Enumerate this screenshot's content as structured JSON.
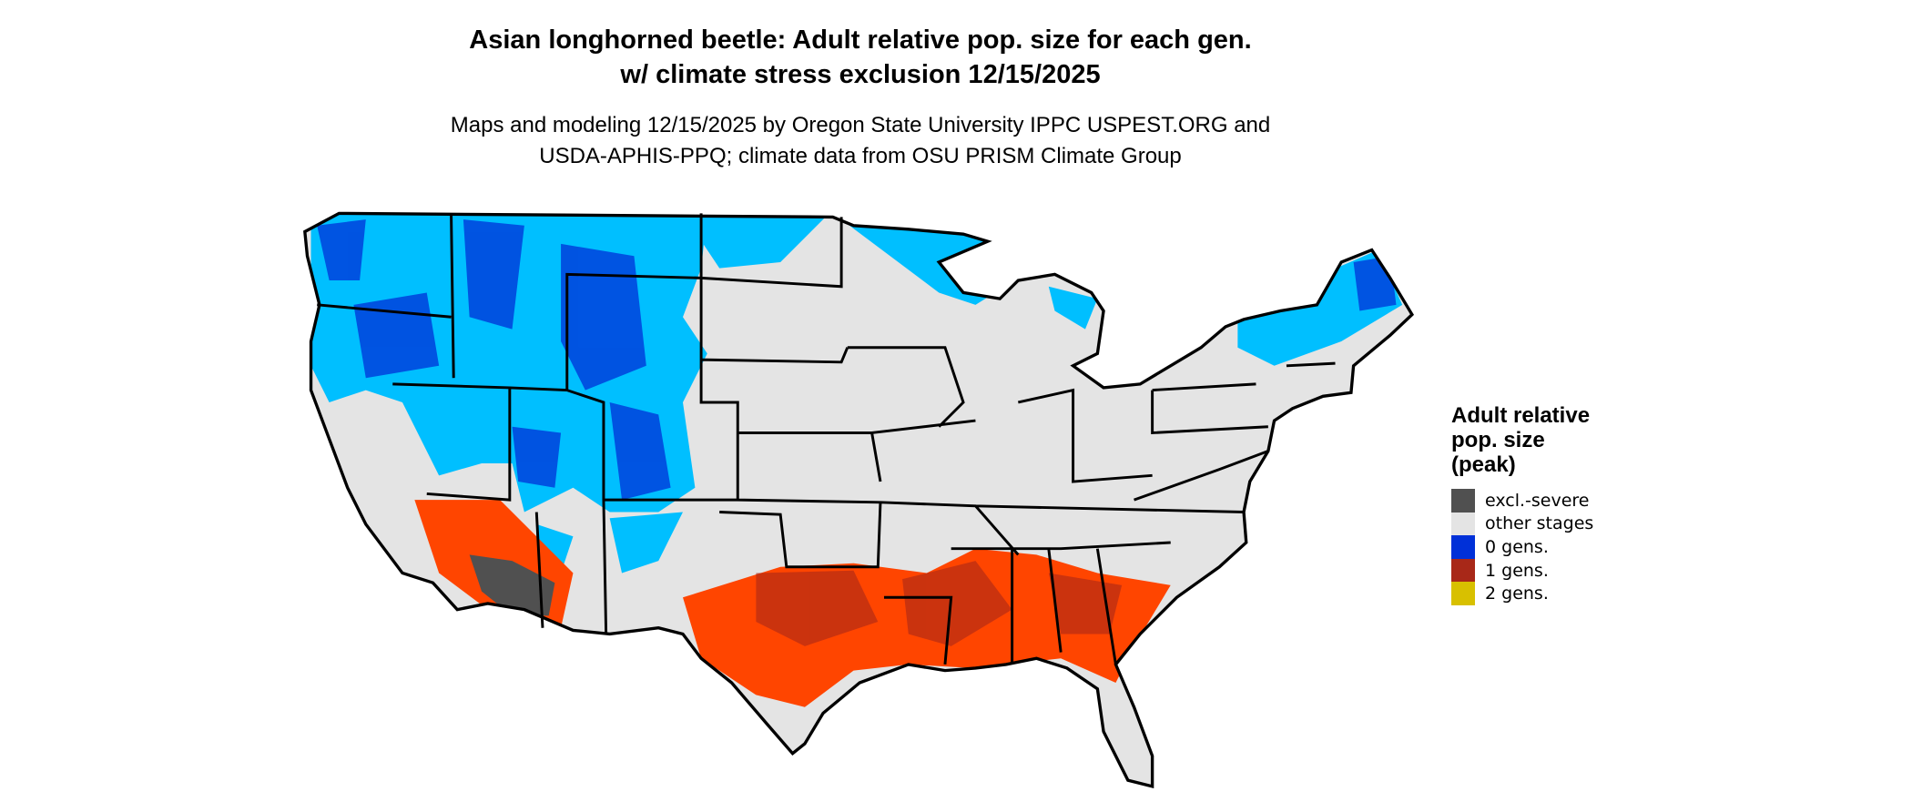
{
  "title": {
    "line1": "Asian longhorned beetle: Adult relative pop. size for each gen.",
    "line2": "w/ climate stress exclusion 12/15/2025"
  },
  "subtitle": {
    "line1": "Maps and modeling 12/15/2025 by Oregon State University IPPC USPEST.ORG and",
    "line2": "USDA-APHIS-PPQ; climate data from OSU PRISM Climate Group"
  },
  "legend": {
    "title": "Adult relative\npop. size\n(peak)",
    "items": [
      {
        "label": "excl.-severe",
        "color": "#505050"
      },
      {
        "label": "other stages",
        "color": "#e4e4e4"
      },
      {
        "label": "0 gens.",
        "color": "#0030d8"
      },
      {
        "label": "1 gens.",
        "color": "#a82818"
      },
      {
        "label": "2 gens.",
        "color": "#d8c000"
      }
    ]
  },
  "map_colors": {
    "background_land": "#e4e4e4",
    "cold_light_blue": "#00bfff",
    "cold_blue": "#0030d8",
    "warm_orange": "#ff4500",
    "warm_red": "#a82818",
    "excluded_gray": "#505050",
    "borders": "#000000"
  }
}
